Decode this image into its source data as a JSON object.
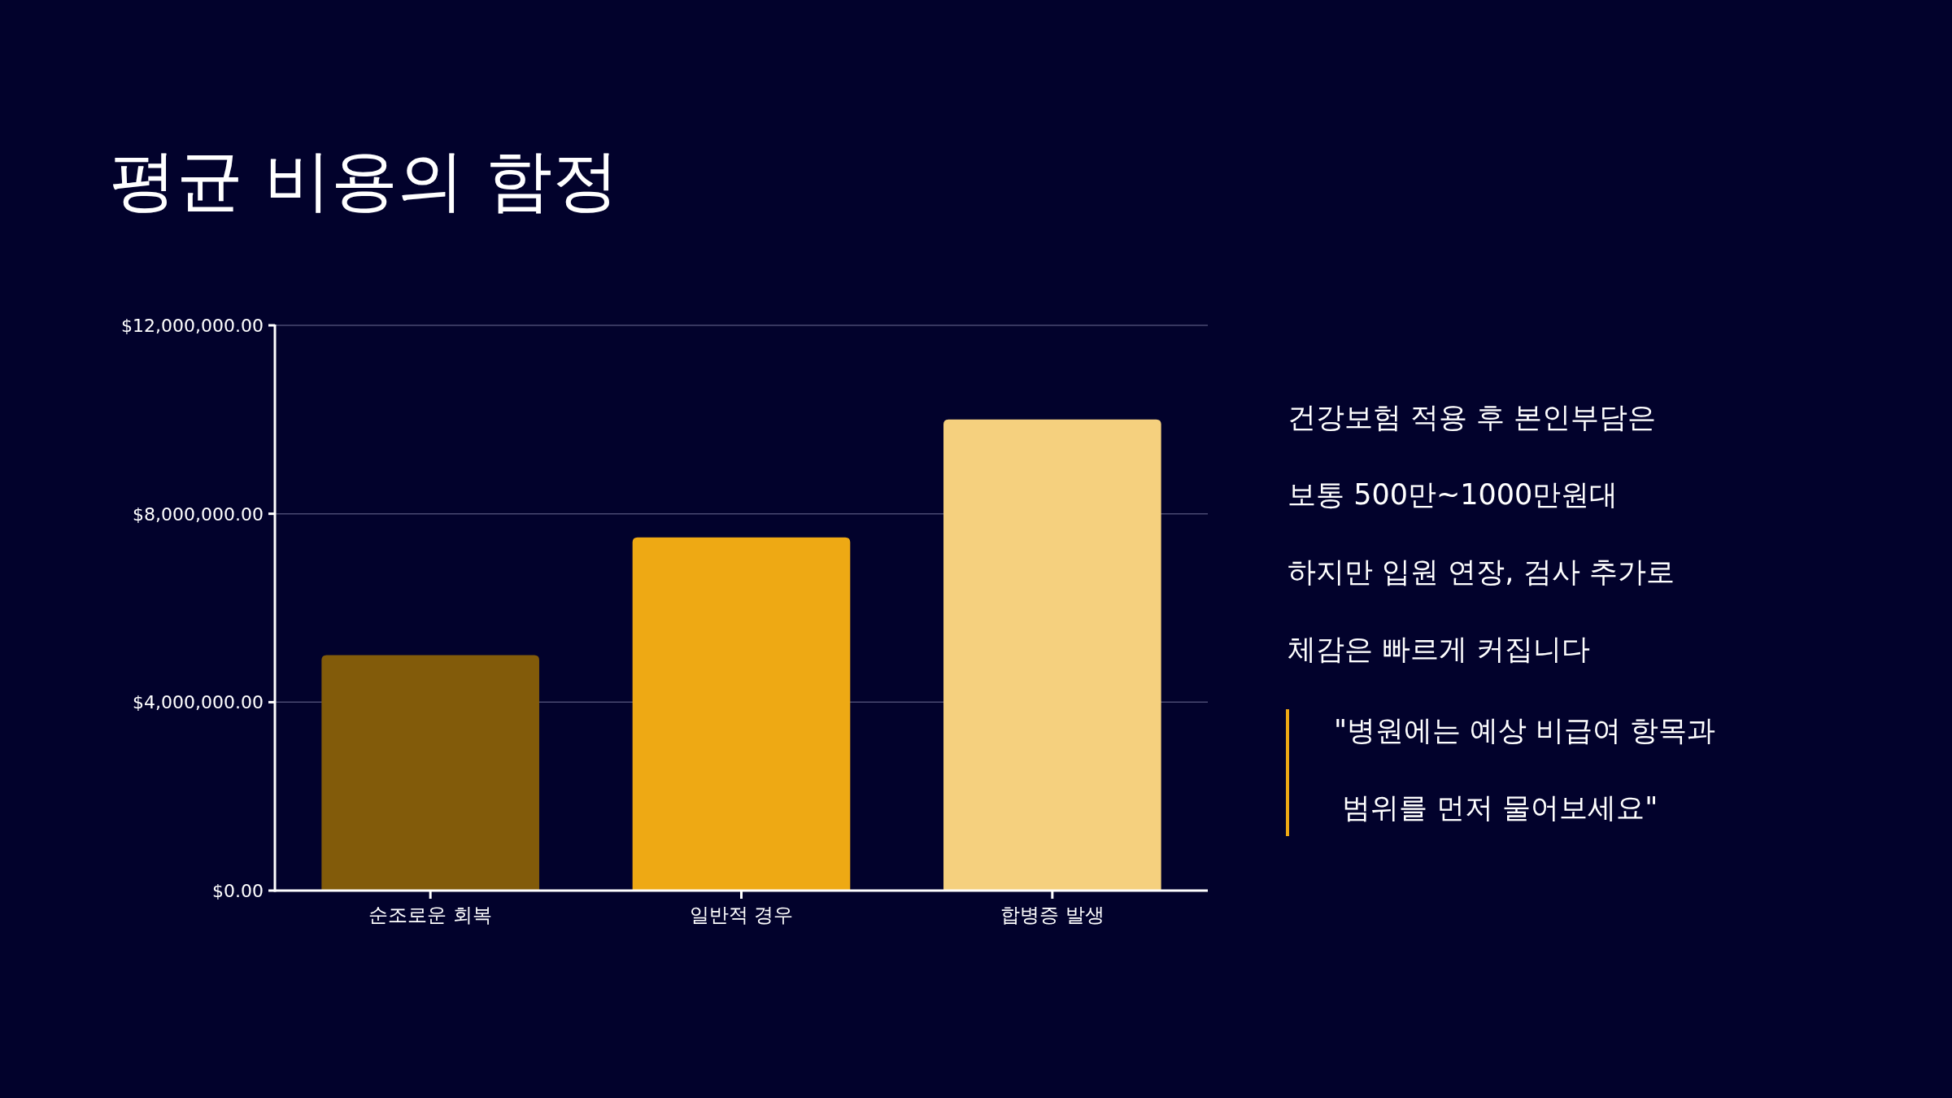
{
  "chart_data": {
    "type": "bar",
    "title": "평균 비용의 함정",
    "categories": [
      "순조로운 회복",
      "일반적 경우",
      "합병증 발생"
    ],
    "values": [
      5000000,
      7500000,
      10000000
    ],
    "colors": [
      "#825b0a",
      "#eea914",
      "#f5d07e"
    ],
    "ylim": [
      0,
      12000000
    ],
    "yticks": [
      {
        "value": 0,
        "label": "$0.00"
      },
      {
        "value": 4000000,
        "label": "$4,000,000.00"
      },
      {
        "value": 8000000,
        "label": "$8,000,000.00"
      },
      {
        "value": 12000000,
        "label": "$12,000,000.00"
      }
    ],
    "grid": "y",
    "annotations": [
      "건강보험 적용 후 본인부담은",
      "보통 500만~1000만원대",
      "하지만 입원 연장, 검사 추가로",
      "체감은 빠르게 커집니다",
      "\"병원에는 예상 비급여 항목과",
      "범위를 먼저 물어보세요\""
    ]
  }
}
